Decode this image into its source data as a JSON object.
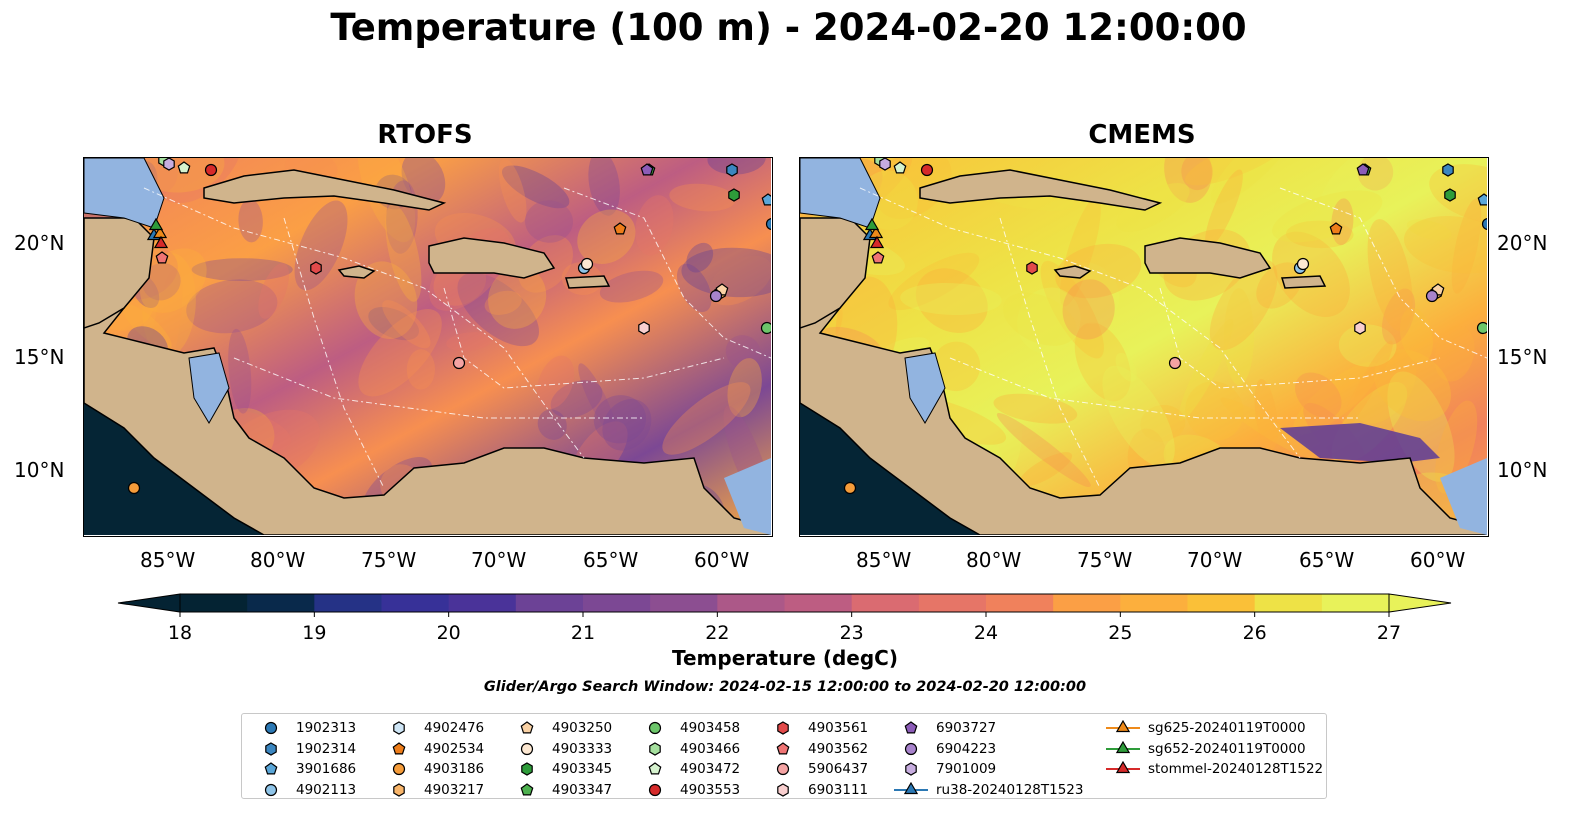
{
  "title": "Temperature (100 m) - 2024-02-20 12:00:00",
  "panels": [
    {
      "name": "rtofs",
      "title": "RTOFS"
    },
    {
      "name": "cmems",
      "title": "CMEMS"
    }
  ],
  "axes": {
    "x_ticks": [
      "85°W",
      "80°W",
      "75°W",
      "70°W",
      "65°W",
      "60°W"
    ],
    "y_ticks": [
      "20°N",
      "15°N",
      "10°N"
    ]
  },
  "colorbar": {
    "label": "Temperature (degC)",
    "min": 18,
    "max": 27,
    "step": 0.5,
    "ticks": [
      "18",
      "19",
      "20",
      "21",
      "22",
      "23",
      "24",
      "25",
      "26",
      "27"
    ],
    "extend": "both",
    "colormap": "thermal",
    "colors": [
      "#042333",
      "#09294b",
      "#142f6a",
      "#253286",
      "#373198",
      "#4a3399",
      "#5c3b98",
      "#6c4296",
      "#7c4894",
      "#8c4e91",
      "#9c538d",
      "#ac5888",
      "#bd5d82",
      "#cc637a",
      "#da6b71",
      "#e67567",
      "#f0815c",
      "#f78f50",
      "#fb9f45",
      "#fcaf3d",
      "#fac038",
      "#f5d13a",
      "#eee246",
      "#e8f25a"
    ]
  },
  "search_window": "Glider/Argo Search Window: 2024-02-15 12:00:00 to 2024-02-20 12:00:00",
  "legend": {
    "columns": [
      [
        {
          "label": "1902313",
          "marker": "circle",
          "color": "#2b78b4"
        },
        {
          "label": "1902314",
          "marker": "hexagon",
          "color": "#3b86c0"
        },
        {
          "label": "3901686",
          "marker": "pentagon",
          "color": "#5aa6d8"
        },
        {
          "label": "4902113",
          "marker": "circle",
          "color": "#8fc4e8"
        }
      ],
      [
        {
          "label": "4902476",
          "marker": "hexagon",
          "color": "#cfe6f6"
        },
        {
          "label": "4902534",
          "marker": "pentagon",
          "color": "#ee7d1a"
        },
        {
          "label": "4903186",
          "marker": "circle",
          "color": "#f59c3a"
        },
        {
          "label": "4903217",
          "marker": "hexagon",
          "color": "#f8b56a"
        }
      ],
      [
        {
          "label": "4903250",
          "marker": "pentagon",
          "color": "#fad2a5"
        },
        {
          "label": "4903333",
          "marker": "circle",
          "color": "#fde8d2"
        },
        {
          "label": "4903345",
          "marker": "hexagon",
          "color": "#2e9c3a"
        },
        {
          "label": "4903347",
          "marker": "pentagon",
          "color": "#4db14f"
        }
      ],
      [
        {
          "label": "4903458",
          "marker": "circle",
          "color": "#6cc66a"
        },
        {
          "label": "4903466",
          "marker": "hexagon",
          "color": "#a5e09e"
        },
        {
          "label": "4903472",
          "marker": "pentagon",
          "color": "#d6f3cf"
        },
        {
          "label": "4903553",
          "marker": "circle",
          "color": "#d62a2a"
        }
      ],
      [
        {
          "label": "4903561",
          "marker": "hexagon",
          "color": "#e24a4a"
        },
        {
          "label": "4903562",
          "marker": "pentagon",
          "color": "#ef7474"
        },
        {
          "label": "5906437",
          "marker": "circle",
          "color": "#f4a3a3"
        },
        {
          "label": "6903111",
          "marker": "hexagon",
          "color": "#f9cfcf"
        }
      ],
      [
        {
          "label": "6903727",
          "marker": "pentagon",
          "color": "#8c5cb8"
        },
        {
          "label": "6904223",
          "marker": "circle",
          "color": "#a883cc"
        },
        {
          "label": "7901009",
          "marker": "hexagon",
          "color": "#c7addf"
        },
        {
          "label": "ru38-20240128T1523",
          "marker": "triangle-line",
          "color": "#2b78b4"
        }
      ],
      [
        {
          "label": "sg625-20240119T0000",
          "marker": "triangle-line",
          "color": "#ee8a1a"
        },
        {
          "label": "sg652-20240119T0000",
          "marker": "triangle-line",
          "color": "#2e9c3a"
        },
        {
          "label": "stommel-20240128T1522",
          "marker": "triangle-line",
          "color": "#d62a2a"
        }
      ]
    ]
  },
  "colors": {
    "land": "#d0b48c",
    "shelf": "#92b4e0",
    "deep_pacific": "#052535",
    "coast": "#000000",
    "boundary": "#ffffff"
  }
}
